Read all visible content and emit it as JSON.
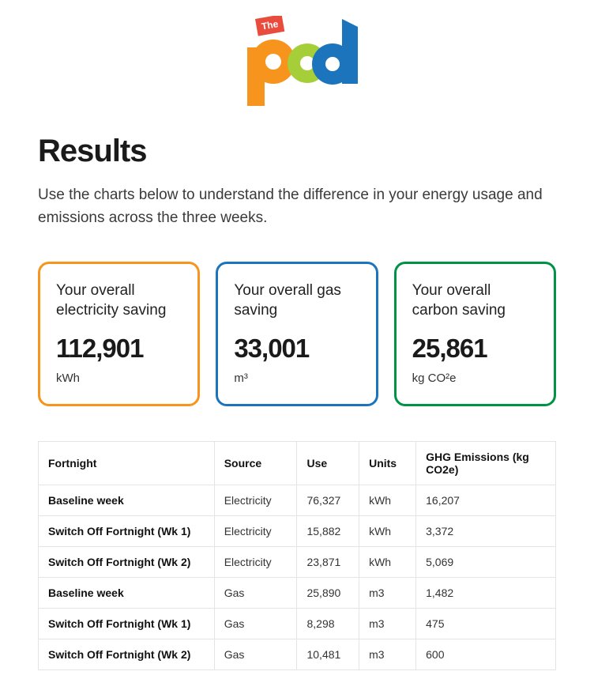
{
  "logo": {
    "tag_text": "The",
    "letters": "pod",
    "colors": {
      "tag_bg": "#e94b3c",
      "tag_text": "#ffffff",
      "p": "#f7941d",
      "o": "#a6ce39",
      "d": "#1c75bc"
    }
  },
  "heading": "Results",
  "intro": "Use the charts below to understand the difference in your energy usage and emissions across the three weeks.",
  "cards": [
    {
      "label": "Your overall electricity saving",
      "value": "112,901",
      "unit": "kWh",
      "border_color": "#f7941d"
    },
    {
      "label": "Your overall gas saving",
      "value": "33,001",
      "unit": "m³",
      "border_color": "#1c75bc"
    },
    {
      "label": "Your overall carbon saving",
      "value": "25,861",
      "unit": "kg CO²e",
      "border_color": "#009245"
    }
  ],
  "table": {
    "columns": [
      "Fortnight",
      "Source",
      "Use",
      "Units",
      "GHG Emissions (kg CO2e)"
    ],
    "col_widths": [
      "34%",
      "16%",
      "12%",
      "11%",
      "27%"
    ],
    "rows": [
      [
        "Baseline week",
        "Electricity",
        "76,327",
        "kWh",
        "16,207"
      ],
      [
        "Switch Off Fortnight (Wk 1)",
        "Electricity",
        "15,882",
        "kWh",
        "3,372"
      ],
      [
        "Switch Off Fortnight (Wk 2)",
        "Electricity",
        "23,871",
        "kWh",
        "5,069"
      ],
      [
        "Baseline week",
        "Gas",
        "25,890",
        "m3",
        "1,482"
      ],
      [
        "Switch Off Fortnight (Wk 1)",
        "Gas",
        "8,298",
        "m3",
        "475"
      ],
      [
        "Switch Off Fortnight (Wk 2)",
        "Gas",
        "10,481",
        "m3",
        "600"
      ]
    ]
  }
}
